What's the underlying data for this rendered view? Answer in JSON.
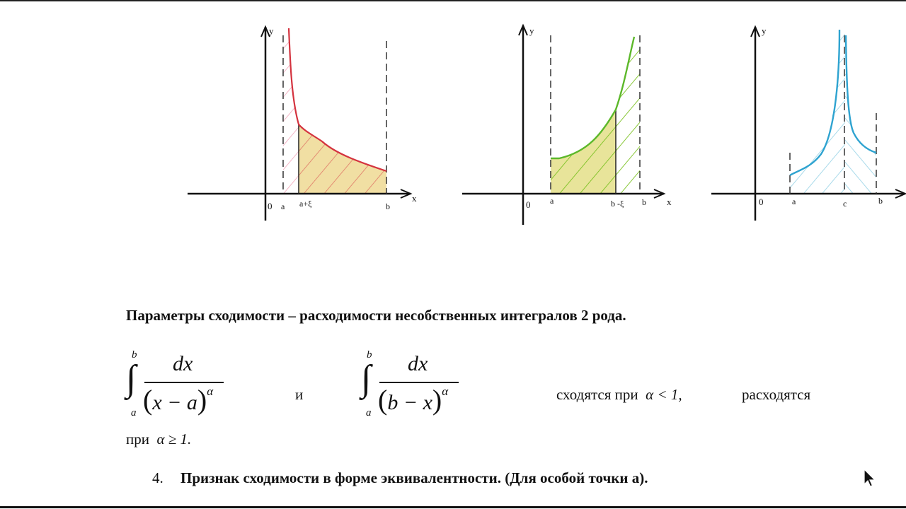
{
  "graphs": [
    {
      "y_label": "y",
      "x_label": "x",
      "origin_label": "0",
      "tick_labels": [
        "a",
        "a+ξ",
        "b"
      ],
      "color": "#d4333f"
    },
    {
      "y_label": "y",
      "x_label": "x",
      "origin_label": "0",
      "tick_labels": [
        "a",
        "b -ξ",
        "b"
      ],
      "color": "#7cc223"
    },
    {
      "y_label": "y",
      "x_label": "",
      "origin_label": "0",
      "tick_labels": [
        "a",
        "c",
        "b"
      ],
      "color": "#2ea3d0"
    }
  ],
  "heading": "Параметры сходимости – расходимости несобственных интегралов 2 рода.",
  "formula1": {
    "upper": "b",
    "lower": "a",
    "numerator": "dx",
    "denominator": "x − a",
    "exponent": "α"
  },
  "conjunction": "и",
  "formula2": {
    "upper": "b",
    "lower": "a",
    "numerator": "dx",
    "denominator": "b − x",
    "exponent": "α"
  },
  "converge_text": "сходятся  при",
  "converge_condition": "α < 1,",
  "diverge_text": "расходятся",
  "diverge_prefix": "при",
  "diverge_condition": "α ≥ 1.",
  "item4": {
    "number": "4.",
    "text": "Признак  сходимости в форме эквивалентности.  (Для особой точки а)."
  }
}
